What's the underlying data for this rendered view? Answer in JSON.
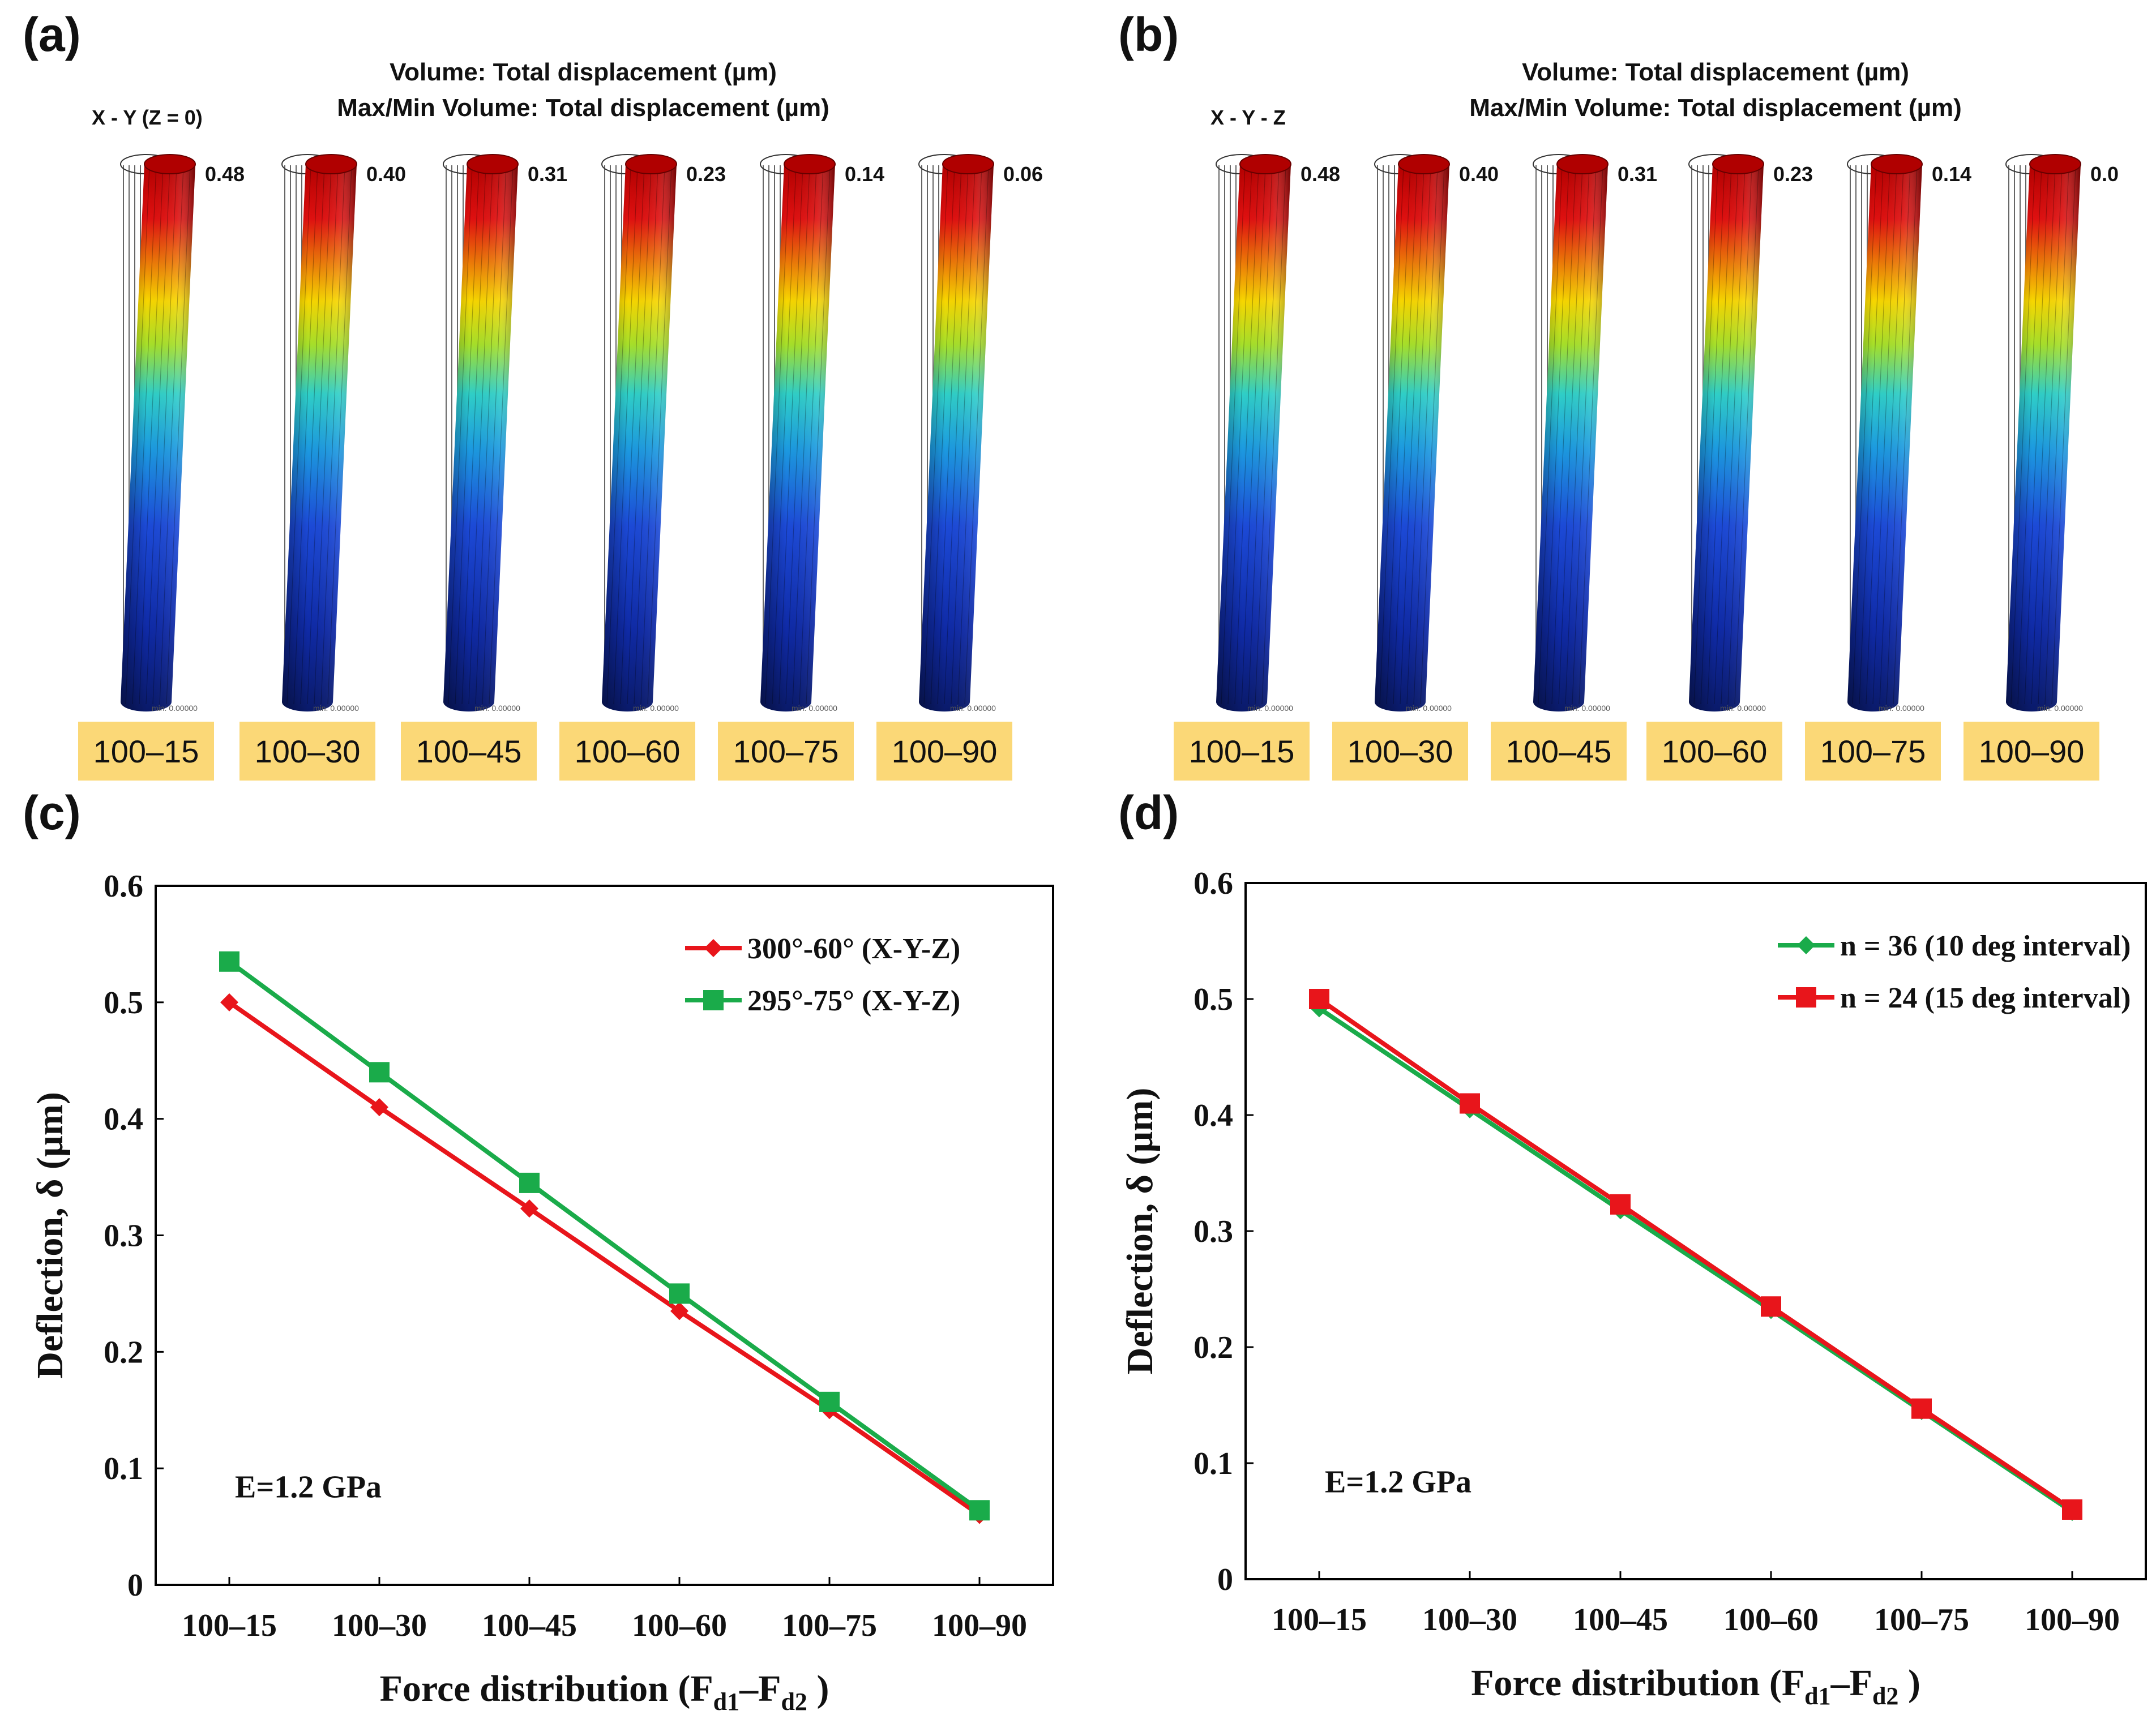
{
  "panels": {
    "a": {
      "label": "(a)",
      "header_line1": "Volume: Total displacement (µm)",
      "header_line2": "Max/Min Volume: Total displacement (µm)",
      "view": "X - Y (Z = 0)",
      "max_values": [
        "0.48",
        "0.40",
        "0.31",
        "0.23",
        "0.14",
        "0.06"
      ],
      "min_label": "min: 0.00000",
      "cases": [
        "100–15",
        "100–30",
        "100–45",
        "100–60",
        "100–75",
        "100–90"
      ]
    },
    "b": {
      "label": "(b)",
      "header_line1": "Volume: Total displacement (µm)",
      "header_line2": "Max/Min Volume: Total displacement (µm)",
      "view": "X - Y - Z",
      "max_values": [
        "0.48",
        "0.40",
        "0.31",
        "0.23",
        "0.14",
        "0.0"
      ],
      "min_label": "min: 0.00000",
      "cases": [
        "100–15",
        "100–30",
        "100–45",
        "100–60",
        "100–75",
        "100–90"
      ]
    }
  },
  "colormap": {
    "high": "#c80000",
    "mid_high": "#f5d800",
    "mid": "#2ec9d0",
    "mid_low": "#1c46d8",
    "low": "#0a1a6a"
  },
  "chart_data": [
    {
      "panel_label": "(c)",
      "type": "line",
      "categories": [
        "100–15",
        "100–30",
        "100–45",
        "100–60",
        "100–75",
        "100–90"
      ],
      "series": [
        {
          "name": "300°-60° (X-Y-Z)",
          "color": "#e8151b",
          "marker": "diamond",
          "values": [
            0.5,
            0.41,
            0.323,
            0.235,
            0.15,
            0.06
          ]
        },
        {
          "name": "295°-75° (X-Y-Z)",
          "color": "#1aab4a",
          "marker": "square",
          "values": [
            0.535,
            0.44,
            0.345,
            0.25,
            0.157,
            0.064
          ]
        }
      ],
      "ylabel": "Deflection, δ (µm)",
      "xlabel_main": "Force distribution (F",
      "xlabel_sub1": "d1",
      "xlabel_mid": "–F",
      "xlabel_sub2": "d2",
      "xlabel_end": " )",
      "ylim": [
        0,
        0.6
      ],
      "yticks": [
        "0",
        "0.1",
        "0.2",
        "0.3",
        "0.4",
        "0.5",
        "0.6"
      ],
      "annotation": "E=1.2 GPa",
      "legend_position": "top-right"
    },
    {
      "panel_label": "(d)",
      "type": "line",
      "categories": [
        "100–15",
        "100–30",
        "100–45",
        "100–60",
        "100–75",
        "100–90"
      ],
      "series": [
        {
          "name": "n = 36 (10 deg interval)",
          "color": "#1aab4a",
          "marker": "diamond",
          "values": [
            0.492,
            0.405,
            0.318,
            0.232,
            0.145,
            0.058
          ]
        },
        {
          "name": "n = 24 (15 deg interval)",
          "color": "#e8151b",
          "marker": "square",
          "values": [
            0.5,
            0.41,
            0.323,
            0.235,
            0.147,
            0.06
          ]
        }
      ],
      "ylabel": "Deflection, δ (µm)",
      "xlabel_main": "Force distribution (F",
      "xlabel_sub1": "d1",
      "xlabel_mid": "–F",
      "xlabel_sub2": "d2",
      "xlabel_end": " )",
      "ylim": [
        0,
        0.6
      ],
      "yticks": [
        "0",
        "0.1",
        "0.2",
        "0.3",
        "0.4",
        "0.5",
        "0.6"
      ],
      "annotation": "E=1.2 GPa",
      "legend_position": "top-right"
    }
  ]
}
